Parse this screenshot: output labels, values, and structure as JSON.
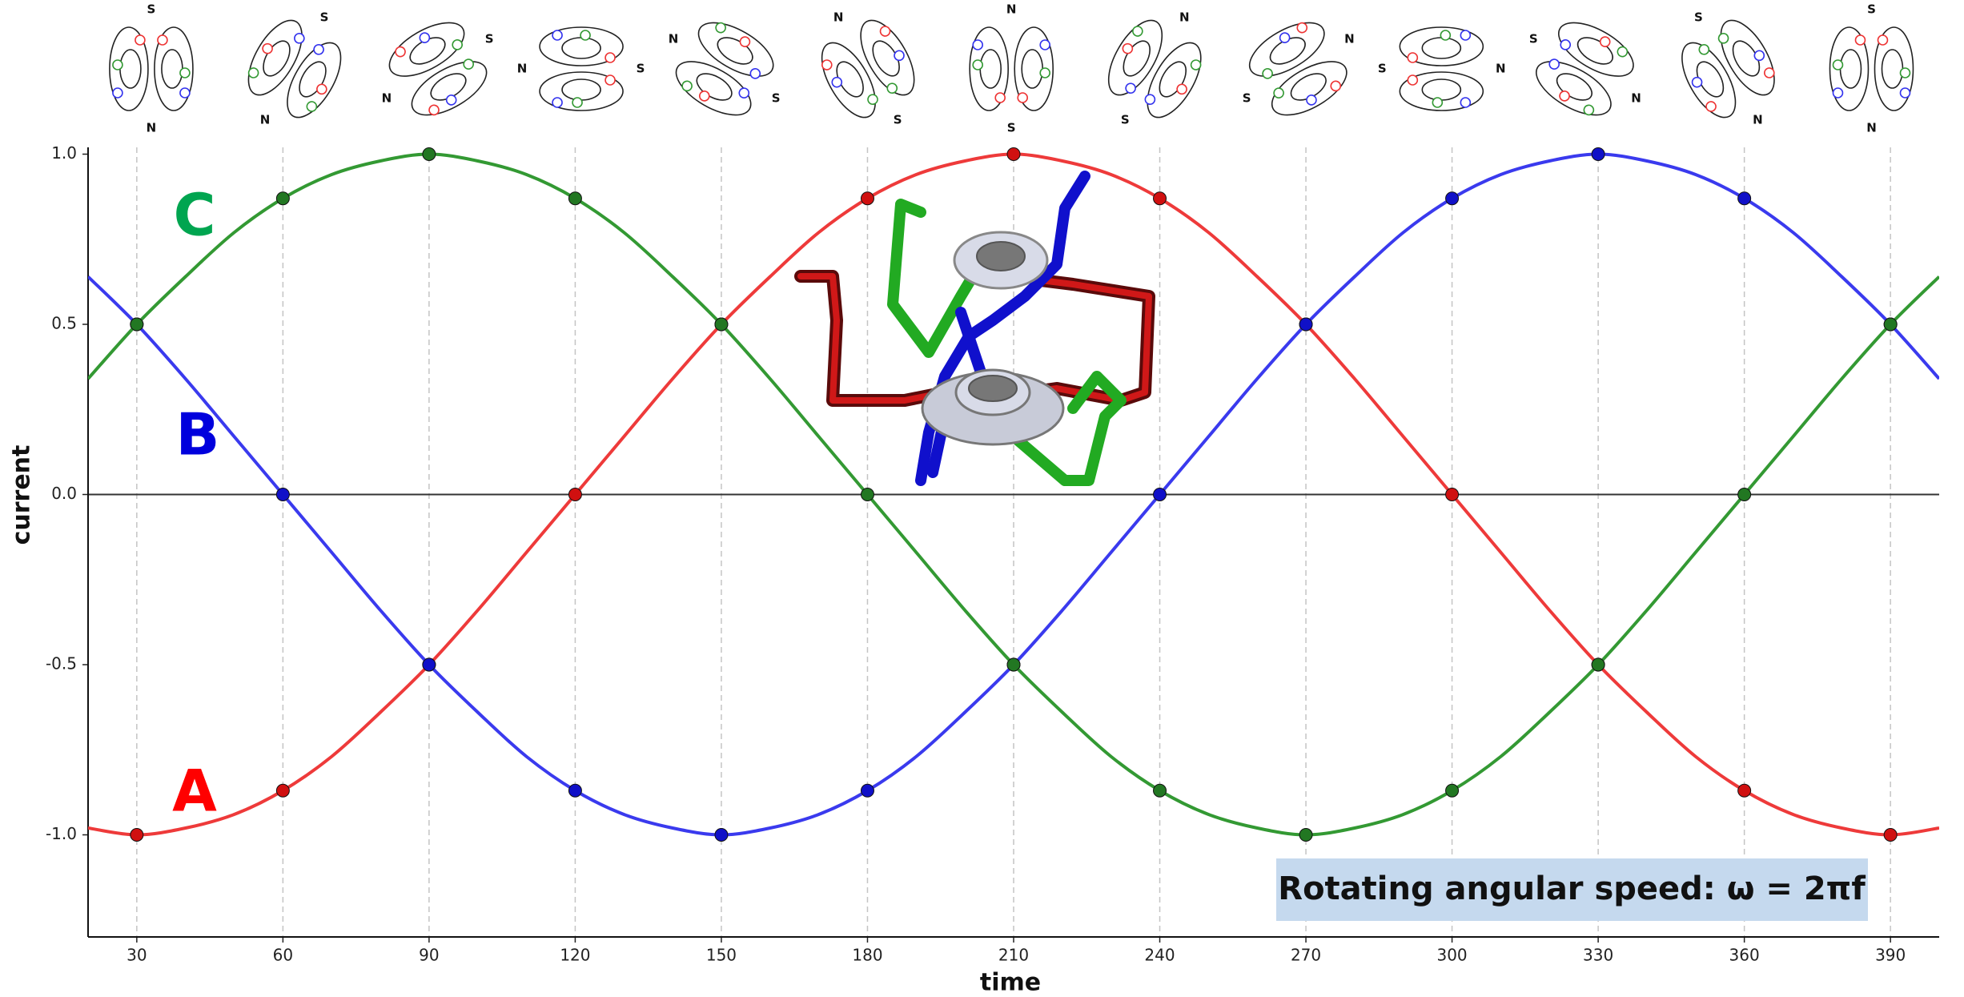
{
  "chart_data": {
    "type": "line",
    "x_label": "time",
    "y_label": "current",
    "xlim": [
      20,
      400
    ],
    "ylim": [
      -1.3,
      1.02
    ],
    "xticks": [
      30,
      60,
      90,
      120,
      150,
      180,
      210,
      240,
      270,
      300,
      330,
      360,
      390
    ],
    "yticks": [
      {
        "value": 1,
        "label": "1.0"
      },
      {
        "value": 0.5,
        "label": "0.5"
      },
      {
        "value": 0,
        "label": "0.0"
      },
      {
        "value": -0.5,
        "label": "-0.5"
      },
      {
        "value": -1,
        "label": "-1.0"
      }
    ],
    "x_grid": true,
    "zero_line": true,
    "marker_step": 30,
    "x": [
      20,
      30,
      40,
      50,
      60,
      70,
      80,
      90,
      100,
      110,
      120,
      130,
      140,
      150,
      160,
      170,
      180,
      190,
      200,
      210,
      220,
      230,
      240,
      250,
      260,
      270,
      280,
      290,
      300,
      310,
      320,
      330,
      340,
      350,
      360,
      370,
      380,
      390,
      400
    ],
    "series": [
      {
        "name": "A",
        "color": "#ee3a3a",
        "marker_color": "#d01010",
        "label_color": "#ff0000",
        "values": [
          -0.98,
          -1,
          -0.98,
          -0.94,
          -0.87,
          -0.77,
          -0.64,
          -0.5,
          -0.34,
          -0.17,
          0,
          0.17,
          0.34,
          0.5,
          0.64,
          0.77,
          0.87,
          0.94,
          0.98,
          1,
          0.98,
          0.94,
          0.87,
          0.77,
          0.64,
          0.5,
          0.34,
          0.17,
          0,
          -0.17,
          -0.34,
          -0.5,
          -0.64,
          -0.77,
          -0.87,
          -0.94,
          -0.98,
          -1,
          -0.98
        ]
      },
      {
        "name": "B",
        "color": "#3a3aee",
        "marker_color": "#1010c8",
        "label_color": "#0000dd",
        "values": [
          0.64,
          0.5,
          0.34,
          0.17,
          0,
          -0.17,
          -0.34,
          -0.5,
          -0.64,
          -0.77,
          -0.87,
          -0.94,
          -0.98,
          -1,
          -0.98,
          -0.94,
          -0.87,
          -0.77,
          -0.64,
          -0.5,
          -0.34,
          -0.17,
          0,
          0.17,
          0.34,
          0.5,
          0.64,
          0.77,
          0.87,
          0.94,
          0.98,
          1,
          0.98,
          0.94,
          0.87,
          0.77,
          0.64,
          0.5,
          0.34
        ]
      },
      {
        "name": "C",
        "color": "#339933",
        "marker_color": "#227722",
        "label_color": "#00a550",
        "values": [
          0.34,
          0.5,
          0.64,
          0.77,
          0.87,
          0.94,
          0.98,
          1,
          0.98,
          0.94,
          0.87,
          0.77,
          0.64,
          0.5,
          0.34,
          0.17,
          0,
          -0.17,
          -0.34,
          -0.5,
          -0.64,
          -0.77,
          -0.87,
          -0.94,
          -0.98,
          -1,
          -0.98,
          -0.94,
          -0.87,
          -0.77,
          -0.64,
          -0.5,
          -0.34,
          -0.17,
          0,
          0.17,
          0.34,
          0.5,
          0.64
        ]
      }
    ],
    "annotation": "Rotating angular speed: ω = 2πf",
    "field_diagrams": {
      "count": 13,
      "angle_step": 30,
      "south": "S",
      "north": "N"
    }
  }
}
